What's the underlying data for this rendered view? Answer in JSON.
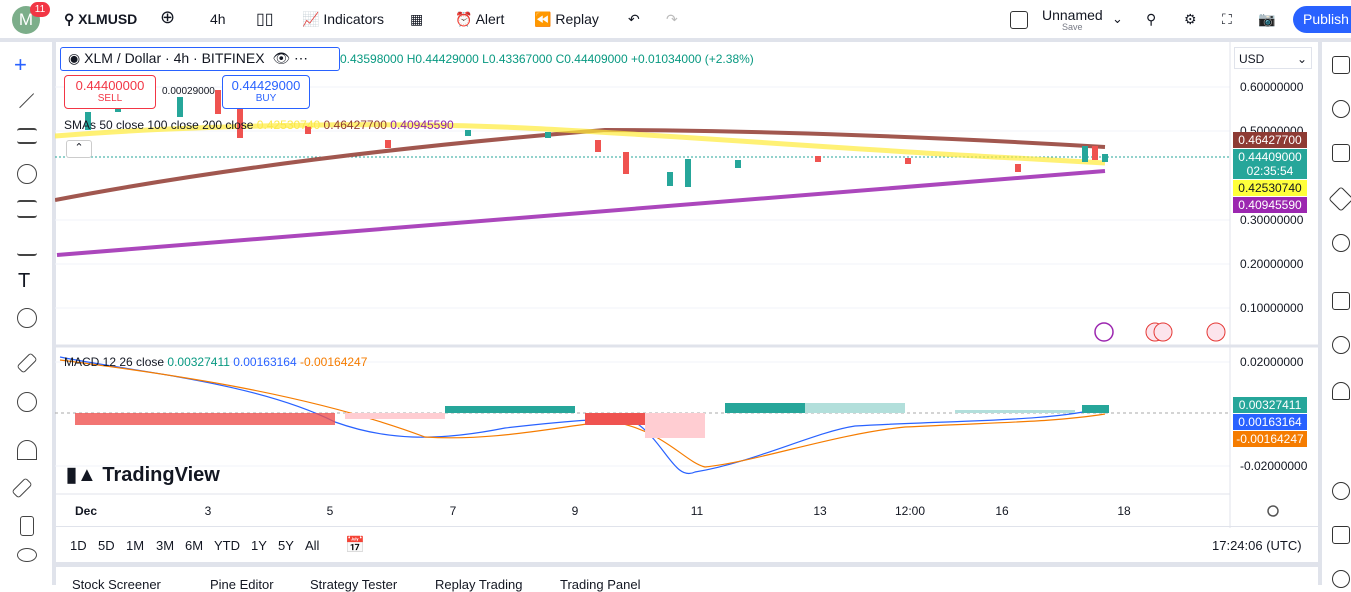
{
  "header": {
    "badge": "11",
    "symbol": "XLMUSD",
    "interval": "4h",
    "indicators": "Indicators",
    "alert": "Alert",
    "replay": "Replay",
    "layout_name": "Unnamed",
    "save": "Save",
    "publish": "Publish"
  },
  "legend": {
    "title": "XLM / Dollar · 4h · BITFINEX",
    "open": "0.43598000",
    "high": "H0.44429000",
    "low": "L0.43367000",
    "close": "C0.44409000",
    "change": "+0.01034000 (+2.38%)"
  },
  "trade": {
    "sell_price": "0.44400000",
    "sell": "SELL",
    "spread": "0.00029000",
    "buy_price": "0.44429000",
    "buy": "BUY"
  },
  "sma": {
    "label": "SMAs 50 close 100 close 200 close",
    "values": [
      "0.42530740",
      "0.46427700",
      "0.40945590"
    ]
  },
  "macd": {
    "label": "MACD 12 26 close",
    "values": [
      "0.00327411",
      "0.00163164",
      "-0.00164247"
    ]
  },
  "price_axis": {
    "currency": "USD",
    "ticks": [
      "0.60000000",
      "0.50000000",
      "0.30000000",
      "0.20000000",
      "0.10000000"
    ],
    "tags": [
      "0.46427700",
      "0.44409000",
      "02:35:54",
      "0.42530740",
      "0.40945590"
    ]
  },
  "macd_axis": {
    "ticks": [
      "0.02000000",
      "-0.02000000"
    ],
    "tags": [
      "0.00327411",
      "0.00163164",
      "-0.00164247"
    ]
  },
  "time_axis": [
    "Dec",
    "3",
    "5",
    "7",
    "9",
    "11",
    "13",
    "12:00",
    "16",
    "18"
  ],
  "watermark": "TradingView",
  "ranges": [
    "1D",
    "5D",
    "1M",
    "3M",
    "6M",
    "YTD",
    "1Y",
    "5Y",
    "All"
  ],
  "clock": "17:24:06 (UTC)",
  "bottom_tabs": [
    "Stock Screener",
    "Pine Editor",
    "Strategy Tester",
    "Replay Trading",
    "Trading Panel"
  ]
}
